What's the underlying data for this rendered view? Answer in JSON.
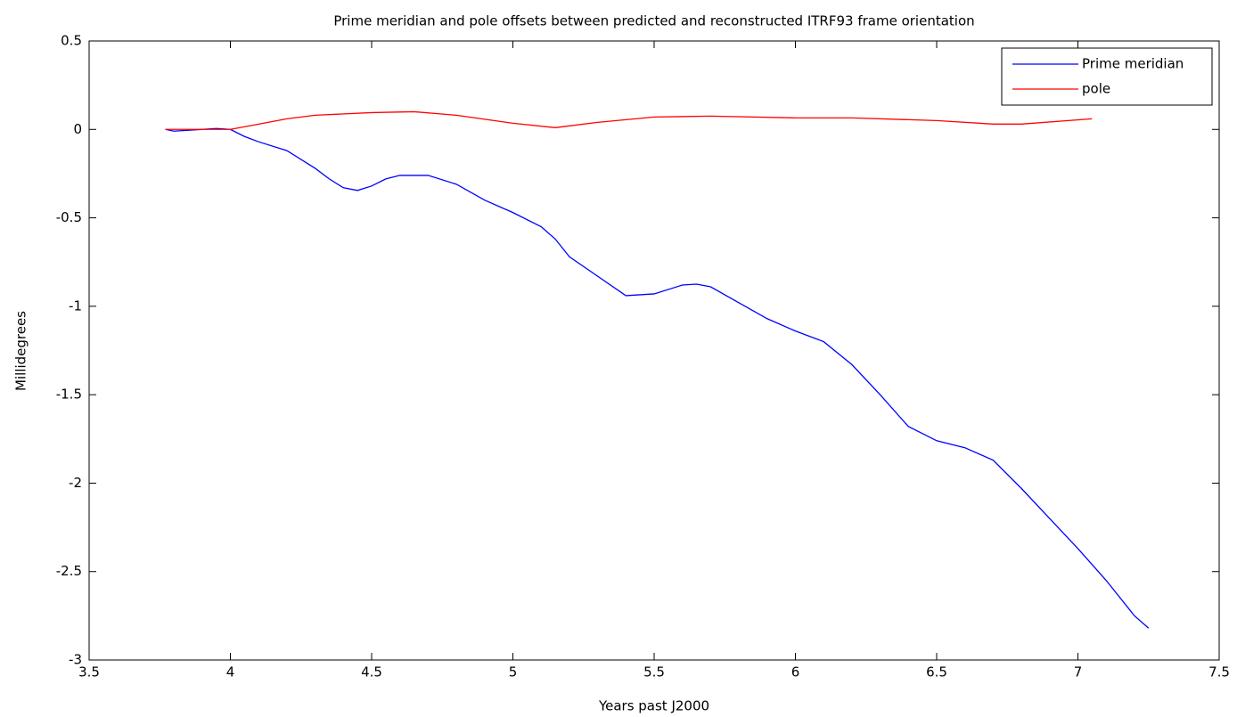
{
  "chart_data": {
    "type": "line",
    "title": "Prime meridian and pole offsets between predicted and reconstructed ITRF93 frame orientation",
    "x_label": "Years past J2000",
    "y_label": "Millidegrees",
    "xlim": [
      3.5,
      7.5
    ],
    "ylim": [
      -3,
      0.5
    ],
    "xticks": [
      3.5,
      4,
      4.5,
      5,
      5.5,
      6,
      6.5,
      7,
      7.5
    ],
    "yticks": [
      -3,
      -2.5,
      -2,
      -1.5,
      -1,
      -0.5,
      0,
      0.5
    ],
    "grid": false,
    "legend": "northeast",
    "series": [
      {
        "name": "Prime meridian",
        "color": "#0000ff",
        "x": [
          3.77,
          3.8,
          3.95,
          4.0,
          4.05,
          4.1,
          4.2,
          4.3,
          4.35,
          4.4,
          4.45,
          4.5,
          4.55,
          4.6,
          4.7,
          4.8,
          4.9,
          5.0,
          5.1,
          5.15,
          5.2,
          5.3,
          5.4,
          5.5,
          5.6,
          5.65,
          5.7,
          5.8,
          5.9,
          6.0,
          6.1,
          6.2,
          6.3,
          6.4,
          6.5,
          6.6,
          6.7,
          6.8,
          6.9,
          7.0,
          7.1,
          7.2,
          7.25
        ],
        "values": [
          0,
          -0.01,
          0.005,
          0,
          -0.04,
          -0.07,
          -0.12,
          -0.22,
          -0.28,
          -0.33,
          -0.345,
          -0.32,
          -0.28,
          -0.26,
          -0.26,
          -0.31,
          -0.4,
          -0.47,
          -0.55,
          -0.62,
          -0.72,
          -0.83,
          -0.94,
          -0.93,
          -0.88,
          -0.875,
          -0.89,
          -0.98,
          -1.07,
          -1.14,
          -1.2,
          -1.33,
          -1.5,
          -1.68,
          -1.76,
          -1.8,
          -1.87,
          -2.03,
          -2.2,
          -2.37,
          -2.55,
          -2.75,
          -2.82
        ]
      },
      {
        "name": "pole",
        "color": "#ff0000",
        "x": [
          3.77,
          4.0,
          4.1,
          4.2,
          4.3,
          4.5,
          4.65,
          4.8,
          5.0,
          5.15,
          5.3,
          5.5,
          5.7,
          6.0,
          6.2,
          6.5,
          6.7,
          6.8,
          7.05
        ],
        "values": [
          0,
          0,
          0.03,
          0.06,
          0.08,
          0.095,
          0.1,
          0.08,
          0.035,
          0.01,
          0.04,
          0.07,
          0.075,
          0.065,
          0.065,
          0.05,
          0.03,
          0.03,
          0.06
        ]
      }
    ]
  }
}
